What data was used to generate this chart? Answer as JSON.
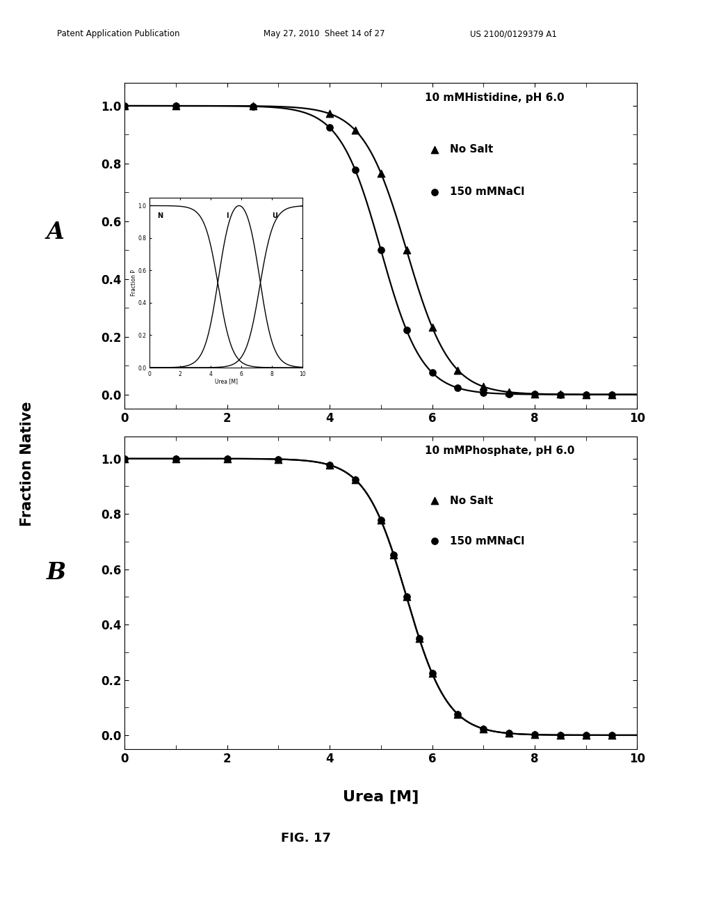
{
  "header_left": "Patent Application Publication",
  "header_mid": "May 27, 2010  Sheet 14 of 27",
  "header_right": "US 2100/0129379 A1",
  "fig_label": "FIG. 17",
  "ylabel": "Fraction Native",
  "xlabel": "Urea [M]",
  "panel_A": {
    "label": "A",
    "title": "10 mMHistidine, pH 6.0",
    "legend_entries": [
      "No Salt",
      "150 mMNaCl"
    ],
    "nosalt_midpoint": 5.5,
    "nosalt_steepness": 0.42,
    "nacl_midpoint": 5.0,
    "nacl_steepness": 0.4,
    "nosalt_marker_x": [
      0.0,
      1.0,
      2.5,
      4.0,
      4.5,
      5.0,
      5.5,
      6.0,
      6.5,
      7.0,
      7.5,
      8.0,
      8.5,
      9.0,
      9.5
    ],
    "nacl_marker_x": [
      0.0,
      1.0,
      2.5,
      4.0,
      4.5,
      5.0,
      5.5,
      6.0,
      6.5,
      7.0,
      7.5,
      8.0,
      8.5,
      9.0,
      9.5
    ]
  },
  "panel_B": {
    "label": "B",
    "title": "10 mMPhosphate, pH 6.0",
    "legend_entries": [
      "No Salt",
      "150 mMNaCl"
    ],
    "nosalt_midpoint": 5.5,
    "nosalt_steepness": 0.4,
    "nacl_midpoint": 5.5,
    "nacl_steepness": 0.4,
    "nosalt_marker_x": [
      0.0,
      1.0,
      2.0,
      3.0,
      4.0,
      4.5,
      5.0,
      5.25,
      5.5,
      5.75,
      6.0,
      6.5,
      7.0,
      7.5,
      8.0,
      8.5,
      9.0,
      9.5
    ],
    "nacl_marker_x": [
      0.0,
      1.0,
      2.0,
      3.0,
      4.0,
      4.5,
      5.0,
      5.25,
      5.5,
      5.75,
      6.0,
      6.5,
      7.0,
      7.5,
      8.0,
      8.5,
      9.0,
      9.5
    ]
  },
  "inset": {
    "N_midpoint": 4.5,
    "N_steepness": 0.45,
    "I_midpoint_rise": 4.5,
    "I_midpoint_fall": 7.2,
    "I_steepness": 0.45,
    "U_midpoint": 7.2,
    "U_steepness": 0.45,
    "ylabel": "Fraction P",
    "xlabel": "Urea [M]",
    "labels": [
      "N",
      "I",
      "U"
    ]
  },
  "bg_color": "#ffffff",
  "xlim": [
    0,
    10
  ],
  "ylim": [
    -0.05,
    1.08
  ]
}
